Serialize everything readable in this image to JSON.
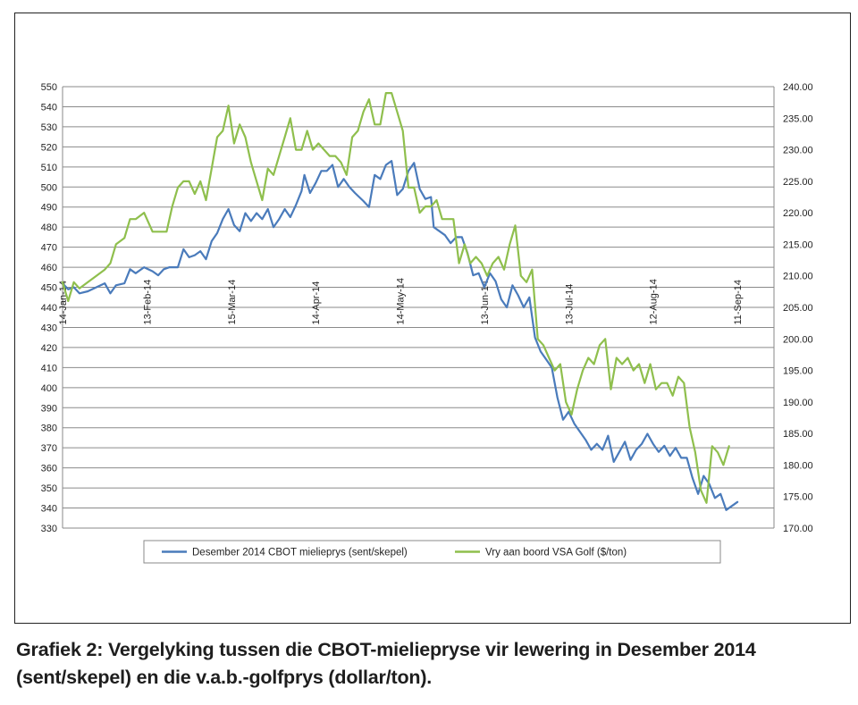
{
  "caption": "Grafiek 2: Vergelyking tussen die CBOT-mieliepryse vir lewering in Desember 2014 (sent/skepel) en die v.a.b.-golfprys (dollar/ton).",
  "chart_data": {
    "type": "line",
    "title": "",
    "xlabel": "",
    "ylabel": "",
    "y_left": {
      "min": 330,
      "max": 550,
      "step": 10,
      "ticks": [
        "550",
        "540",
        "530",
        "520",
        "510",
        "500",
        "490",
        "480",
        "470",
        "460",
        "450",
        "440",
        "430",
        "420",
        "410",
        "400",
        "390",
        "380",
        "370",
        "360",
        "350",
        "340",
        "330"
      ]
    },
    "y_right": {
      "min": 170,
      "max": 240,
      "step": 5,
      "ticks": [
        "240.00",
        "235.00",
        "230.00",
        "225.00",
        "220.00",
        "215.00",
        "210.00",
        "205.00",
        "200.00",
        "195.00",
        "190.00",
        "185.00",
        "180.00",
        "175.00",
        "170.00"
      ]
    },
    "x_range": [
      "2014-01-14",
      "2014-09-24"
    ],
    "x_ticks": [
      {
        "date": "2014-01-14",
        "label": "14-Jan-14"
      },
      {
        "date": "2014-02-13",
        "label": "13-Feb-14"
      },
      {
        "date": "2014-03-15",
        "label": "15-Mar-14"
      },
      {
        "date": "2014-04-14",
        "label": "14-Apr-14"
      },
      {
        "date": "2014-05-14",
        "label": "14-May-14"
      },
      {
        "date": "2014-06-13",
        "label": "13-Jun-14"
      },
      {
        "date": "2014-07-13",
        "label": "13-Jul-14"
      },
      {
        "date": "2014-08-12",
        "label": "12-Aug-14"
      },
      {
        "date": "2014-09-11",
        "label": "11-Sep-14"
      }
    ],
    "grid": "horizontal",
    "legend_position": "bottom",
    "series": [
      {
        "name": "Desember 2014 CBOT mielieprys (sent/skepel)",
        "axis": "left",
        "color": "#4a7bbb",
        "points": [
          [
            "2014-01-14",
            452
          ],
          [
            "2014-01-16",
            449
          ],
          [
            "2014-01-18",
            450
          ],
          [
            "2014-01-20",
            447
          ],
          [
            "2014-01-23",
            448
          ],
          [
            "2014-01-26",
            450
          ],
          [
            "2014-01-29",
            452
          ],
          [
            "2014-01-31",
            447
          ],
          [
            "2014-02-02",
            451
          ],
          [
            "2014-02-05",
            452
          ],
          [
            "2014-02-07",
            459
          ],
          [
            "2014-02-09",
            457
          ],
          [
            "2014-02-12",
            460
          ],
          [
            "2014-02-15",
            458
          ],
          [
            "2014-02-17",
            456
          ],
          [
            "2014-02-19",
            459
          ],
          [
            "2014-02-21",
            460
          ],
          [
            "2014-02-24",
            460
          ],
          [
            "2014-02-26",
            469
          ],
          [
            "2014-02-28",
            465
          ],
          [
            "2014-03-02",
            466
          ],
          [
            "2014-03-04",
            468
          ],
          [
            "2014-03-06",
            464
          ],
          [
            "2014-03-08",
            473
          ],
          [
            "2014-03-10",
            477
          ],
          [
            "2014-03-12",
            484
          ],
          [
            "2014-03-14",
            489
          ],
          [
            "2014-03-16",
            481
          ],
          [
            "2014-03-18",
            478
          ],
          [
            "2014-03-20",
            487
          ],
          [
            "2014-03-22",
            483
          ],
          [
            "2014-03-24",
            487
          ],
          [
            "2014-03-26",
            484
          ],
          [
            "2014-03-28",
            489
          ],
          [
            "2014-03-30",
            480
          ],
          [
            "2014-04-01",
            484
          ],
          [
            "2014-04-03",
            489
          ],
          [
            "2014-04-05",
            485
          ],
          [
            "2014-04-07",
            491
          ],
          [
            "2014-04-09",
            498
          ],
          [
            "2014-04-10",
            506
          ],
          [
            "2014-04-12",
            497
          ],
          [
            "2014-04-14",
            502
          ],
          [
            "2014-04-16",
            508
          ],
          [
            "2014-04-18",
            508
          ],
          [
            "2014-04-20",
            511
          ],
          [
            "2014-04-22",
            500
          ],
          [
            "2014-04-24",
            504
          ],
          [
            "2014-04-26",
            500
          ],
          [
            "2014-04-28",
            497
          ],
          [
            "2014-05-01",
            493
          ],
          [
            "2014-05-03",
            490
          ],
          [
            "2014-05-05",
            506
          ],
          [
            "2014-05-07",
            504
          ],
          [
            "2014-05-09",
            511
          ],
          [
            "2014-05-11",
            513
          ],
          [
            "2014-05-13",
            496
          ],
          [
            "2014-05-15",
            499
          ],
          [
            "2014-05-17",
            508
          ],
          [
            "2014-05-19",
            512
          ],
          [
            "2014-05-21",
            499
          ],
          [
            "2014-05-23",
            494
          ],
          [
            "2014-05-25",
            495
          ],
          [
            "2014-05-26",
            480
          ],
          [
            "2014-05-28",
            478
          ],
          [
            "2014-05-30",
            476
          ],
          [
            "2014-06-01",
            472
          ],
          [
            "2014-06-03",
            475
          ],
          [
            "2014-06-05",
            475
          ],
          [
            "2014-06-07",
            467
          ],
          [
            "2014-06-09",
            456
          ],
          [
            "2014-06-11",
            457
          ],
          [
            "2014-06-13",
            450
          ],
          [
            "2014-06-15",
            457
          ],
          [
            "2014-06-17",
            453
          ],
          [
            "2014-06-19",
            444
          ],
          [
            "2014-06-21",
            440
          ],
          [
            "2014-06-23",
            451
          ],
          [
            "2014-06-25",
            446
          ],
          [
            "2014-06-27",
            440
          ],
          [
            "2014-06-29",
            445
          ],
          [
            "2014-07-01",
            425
          ],
          [
            "2014-07-03",
            418
          ],
          [
            "2014-07-05",
            414
          ],
          [
            "2014-07-07",
            410
          ],
          [
            "2014-07-09",
            395
          ],
          [
            "2014-07-11",
            384
          ],
          [
            "2014-07-13",
            388
          ],
          [
            "2014-07-15",
            382
          ],
          [
            "2014-07-17",
            378
          ],
          [
            "2014-07-19",
            374
          ],
          [
            "2014-07-21",
            369
          ],
          [
            "2014-07-23",
            372
          ],
          [
            "2014-07-25",
            369
          ],
          [
            "2014-07-27",
            376
          ],
          [
            "2014-07-29",
            363
          ],
          [
            "2014-07-31",
            368
          ],
          [
            "2014-08-02",
            373
          ],
          [
            "2014-08-04",
            364
          ],
          [
            "2014-08-06",
            369
          ],
          [
            "2014-08-08",
            372
          ],
          [
            "2014-08-10",
            377
          ],
          [
            "2014-08-12",
            372
          ],
          [
            "2014-08-14",
            368
          ],
          [
            "2014-08-16",
            371
          ],
          [
            "2014-08-18",
            366
          ],
          [
            "2014-08-20",
            370
          ],
          [
            "2014-08-22",
            365
          ],
          [
            "2014-08-24",
            365
          ],
          [
            "2014-08-26",
            355
          ],
          [
            "2014-08-28",
            347
          ],
          [
            "2014-08-30",
            356
          ],
          [
            "2014-09-01",
            352
          ],
          [
            "2014-09-03",
            345
          ],
          [
            "2014-09-05",
            347
          ],
          [
            "2014-09-07",
            339
          ],
          [
            "2014-09-09",
            341
          ],
          [
            "2014-09-11",
            343
          ]
        ]
      },
      {
        "name": "Vry aan boord VSA Golf ($/ton)",
        "axis": "right",
        "color": "#8fbf4d",
        "points": [
          [
            "2014-01-14",
            209
          ],
          [
            "2014-01-16",
            206
          ],
          [
            "2014-01-18",
            209
          ],
          [
            "2014-01-20",
            208
          ],
          [
            "2014-01-23",
            209
          ],
          [
            "2014-01-26",
            210
          ],
          [
            "2014-01-29",
            211
          ],
          [
            "2014-01-31",
            212
          ],
          [
            "2014-02-02",
            215
          ],
          [
            "2014-02-05",
            216
          ],
          [
            "2014-02-07",
            219
          ],
          [
            "2014-02-09",
            219
          ],
          [
            "2014-02-12",
            220
          ],
          [
            "2014-02-15",
            217
          ],
          [
            "2014-02-17",
            217
          ],
          [
            "2014-02-20",
            217
          ],
          [
            "2014-02-22",
            221
          ],
          [
            "2014-02-24",
            224
          ],
          [
            "2014-02-26",
            225
          ],
          [
            "2014-02-28",
            225
          ],
          [
            "2014-03-02",
            223
          ],
          [
            "2014-03-04",
            225
          ],
          [
            "2014-03-06",
            222
          ],
          [
            "2014-03-08",
            227
          ],
          [
            "2014-03-10",
            232
          ],
          [
            "2014-03-12",
            233
          ],
          [
            "2014-03-14",
            237
          ],
          [
            "2014-03-16",
            231
          ],
          [
            "2014-03-18",
            234
          ],
          [
            "2014-03-20",
            232
          ],
          [
            "2014-03-22",
            228
          ],
          [
            "2014-03-24",
            225
          ],
          [
            "2014-03-26",
            222
          ],
          [
            "2014-03-28",
            227
          ],
          [
            "2014-03-30",
            226
          ],
          [
            "2014-04-01",
            229
          ],
          [
            "2014-04-03",
            232
          ],
          [
            "2014-04-05",
            235
          ],
          [
            "2014-04-07",
            230
          ],
          [
            "2014-04-09",
            230
          ],
          [
            "2014-04-11",
            233
          ],
          [
            "2014-04-13",
            230
          ],
          [
            "2014-04-15",
            231
          ],
          [
            "2014-04-17",
            230
          ],
          [
            "2014-04-19",
            229
          ],
          [
            "2014-04-21",
            229
          ],
          [
            "2014-04-23",
            228
          ],
          [
            "2014-04-25",
            226
          ],
          [
            "2014-04-27",
            232
          ],
          [
            "2014-04-29",
            233
          ],
          [
            "2014-05-01",
            236
          ],
          [
            "2014-05-03",
            238
          ],
          [
            "2014-05-05",
            234
          ],
          [
            "2014-05-07",
            234
          ],
          [
            "2014-05-09",
            239
          ],
          [
            "2014-05-11",
            239
          ],
          [
            "2014-05-13",
            236
          ],
          [
            "2014-05-15",
            233
          ],
          [
            "2014-05-17",
            224
          ],
          [
            "2014-05-19",
            224
          ],
          [
            "2014-05-21",
            220
          ],
          [
            "2014-05-23",
            221
          ],
          [
            "2014-05-25",
            221
          ],
          [
            "2014-05-27",
            222
          ],
          [
            "2014-05-29",
            219
          ],
          [
            "2014-05-31",
            219
          ],
          [
            "2014-06-02",
            219
          ],
          [
            "2014-06-04",
            212
          ],
          [
            "2014-06-06",
            215
          ],
          [
            "2014-06-08",
            212
          ],
          [
            "2014-06-10",
            213
          ],
          [
            "2014-06-12",
            212
          ],
          [
            "2014-06-14",
            210
          ],
          [
            "2014-06-16",
            212
          ],
          [
            "2014-06-18",
            213
          ],
          [
            "2014-06-20",
            211
          ],
          [
            "2014-06-22",
            215
          ],
          [
            "2014-06-24",
            218
          ],
          [
            "2014-06-26",
            210
          ],
          [
            "2014-06-28",
            209
          ],
          [
            "2014-06-30",
            211
          ],
          [
            "2014-07-02",
            200
          ],
          [
            "2014-07-04",
            199
          ],
          [
            "2014-07-06",
            197
          ],
          [
            "2014-07-08",
            195
          ],
          [
            "2014-07-10",
            196
          ],
          [
            "2014-07-12",
            190
          ],
          [
            "2014-07-14",
            188
          ],
          [
            "2014-07-16",
            192
          ],
          [
            "2014-07-18",
            195
          ],
          [
            "2014-07-20",
            197
          ],
          [
            "2014-07-22",
            196
          ],
          [
            "2014-07-24",
            199
          ],
          [
            "2014-07-26",
            200
          ],
          [
            "2014-07-28",
            192
          ],
          [
            "2014-07-30",
            197
          ],
          [
            "2014-08-01",
            196
          ],
          [
            "2014-08-03",
            197
          ],
          [
            "2014-08-05",
            195
          ],
          [
            "2014-08-07",
            196
          ],
          [
            "2014-08-09",
            193
          ],
          [
            "2014-08-11",
            196
          ],
          [
            "2014-08-13",
            192
          ],
          [
            "2014-08-15",
            193
          ],
          [
            "2014-08-17",
            193
          ],
          [
            "2014-08-19",
            191
          ],
          [
            "2014-08-21",
            194
          ],
          [
            "2014-08-23",
            193
          ],
          [
            "2014-08-25",
            186
          ],
          [
            "2014-08-27",
            182
          ],
          [
            "2014-08-29",
            176
          ],
          [
            "2014-08-31",
            174
          ],
          [
            "2014-09-02",
            183
          ],
          [
            "2014-09-04",
            182
          ],
          [
            "2014-09-06",
            180
          ],
          [
            "2014-09-08",
            183
          ]
        ]
      }
    ]
  }
}
